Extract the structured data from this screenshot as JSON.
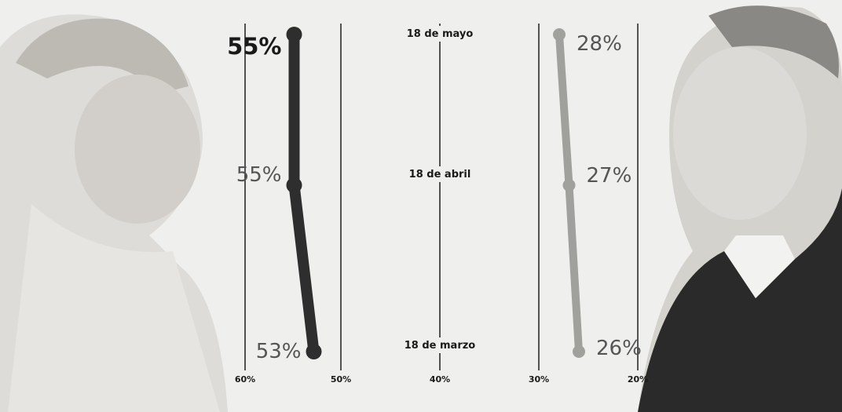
{
  "chart_data": {
    "type": "line",
    "axis": "horizontal percentage axis, decreasing to the right",
    "x_ticks": [
      "60%",
      "50%",
      "40%",
      "30%",
      "20%"
    ],
    "dates": [
      "18 de mayo",
      "18 de abril",
      "18 de marzo"
    ],
    "series": [
      {
        "points": [
          {
            "date": "18 de mayo",
            "value": 55,
            "label": "55%"
          },
          {
            "date": "18 de abril",
            "value": 55,
            "label": "55%"
          },
          {
            "date": "18 de marzo",
            "value": 53,
            "label": "53%"
          }
        ],
        "color": "#2e2e2e"
      },
      {
        "points": [
          {
            "date": "18 de mayo",
            "value": 28,
            "label": "28%"
          },
          {
            "date": "18 de abril",
            "value": 27,
            "label": "27%"
          },
          {
            "date": "18 de marzo",
            "value": 26,
            "label": "26%"
          }
        ],
        "color": "#a0a09c"
      }
    ],
    "grid": true
  },
  "colors": {
    "background": "#efefed",
    "leader": "#2e2e2e",
    "second": "#a0a09c",
    "gridline": "#1e1e1e"
  }
}
